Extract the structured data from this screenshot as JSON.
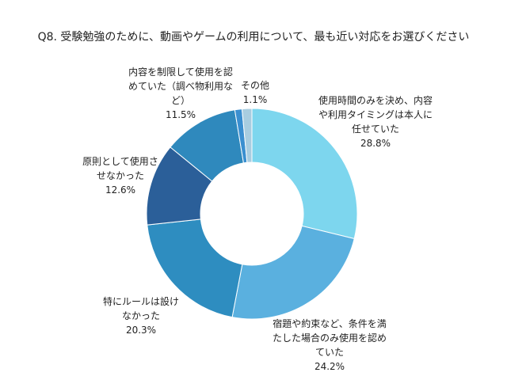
{
  "chart_data": {
    "type": "donut",
    "title": "Q8. 受験勉強のために、動画やゲームの利用について、最も近い対応をお選びください",
    "categories": [
      "使用時間のみを決め、内容や利用タイミングは本人に任せていた",
      "宿題や約束など、条件を満たした場合のみ使用を認めていた",
      "特にルールは設けなかった",
      "原則として使用させなかった",
      "内容を制限して使用を認めていた（調べ物利用など）",
      "その他",
      null
    ],
    "values": [
      28.8,
      24.2,
      20.3,
      12.6,
      11.5,
      1.1,
      1.5
    ],
    "value_labels": [
      "28.8%",
      "24.2%",
      "20.3%",
      "12.6%",
      "11.5%",
      "1.1%",
      null
    ],
    "colors": [
      "#7dd6ee",
      "#5ab0df",
      "#2e8dc0",
      "#2b5f99",
      "#2f89bd",
      "#3a8fd0",
      "#a8cde0"
    ]
  }
}
